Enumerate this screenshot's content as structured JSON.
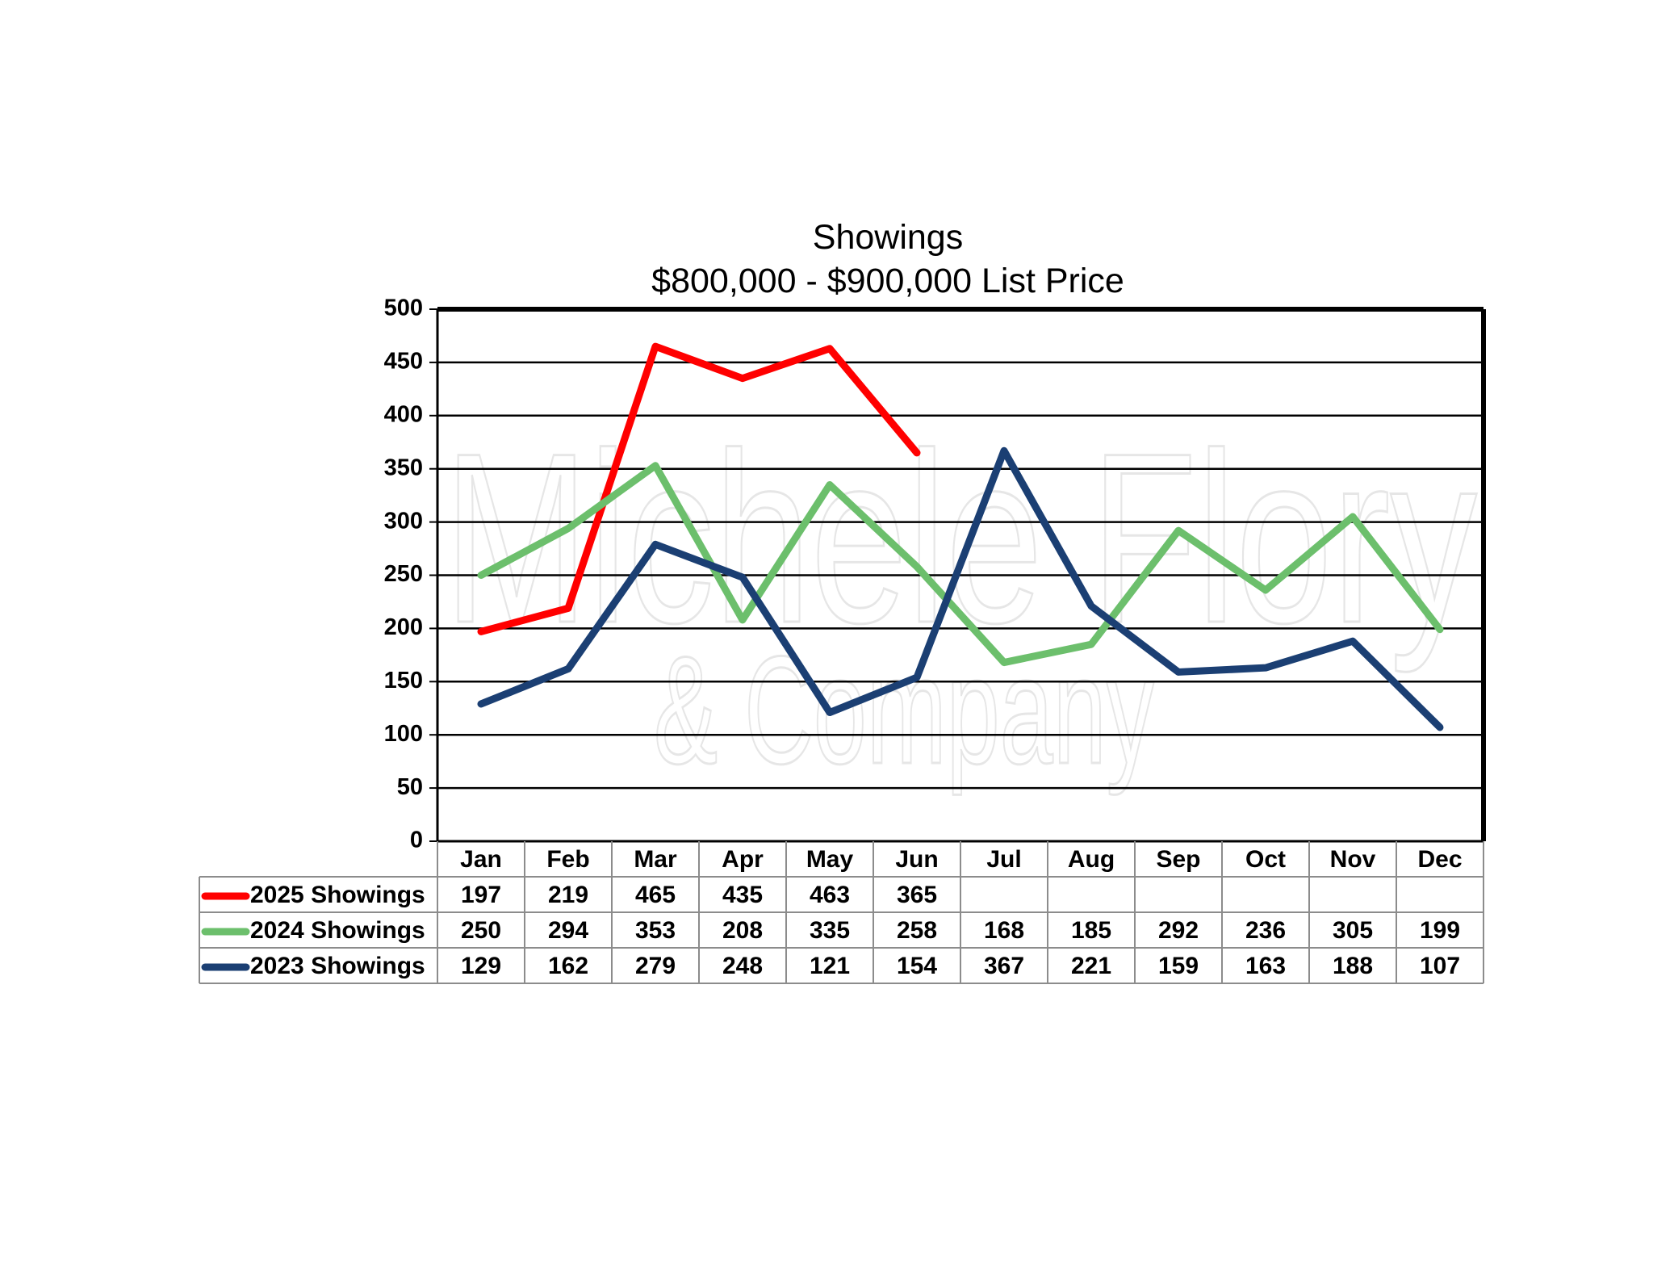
{
  "chart_data": {
    "type": "line",
    "title": "Showings",
    "subtitle": "$800,000 - $900,000 List Price",
    "categories": [
      "Jan",
      "Feb",
      "Mar",
      "Apr",
      "May",
      "Jun",
      "Jul",
      "Aug",
      "Sep",
      "Oct",
      "Nov",
      "Dec"
    ],
    "ylim": [
      0,
      500
    ],
    "yticks": [
      0,
      50,
      100,
      150,
      200,
      250,
      300,
      350,
      400,
      450,
      500
    ],
    "grid": true,
    "legend": "data-table-below",
    "watermark": "Michele Flory & Company",
    "series": [
      {
        "name": "2025 Showings",
        "color": "#ff0000",
        "values": [
          197,
          219,
          465,
          435,
          463,
          365,
          null,
          null,
          null,
          null,
          null,
          null
        ]
      },
      {
        "name": "2024 Showings",
        "color": "#6cbf6c",
        "values": [
          250,
          294,
          353,
          208,
          335,
          258,
          168,
          185,
          292,
          236,
          305,
          199
        ]
      },
      {
        "name": "2023 Showings",
        "color": "#1b3f73",
        "values": [
          129,
          162,
          279,
          248,
          121,
          154,
          367,
          221,
          159,
          163,
          188,
          107
        ]
      }
    ]
  }
}
